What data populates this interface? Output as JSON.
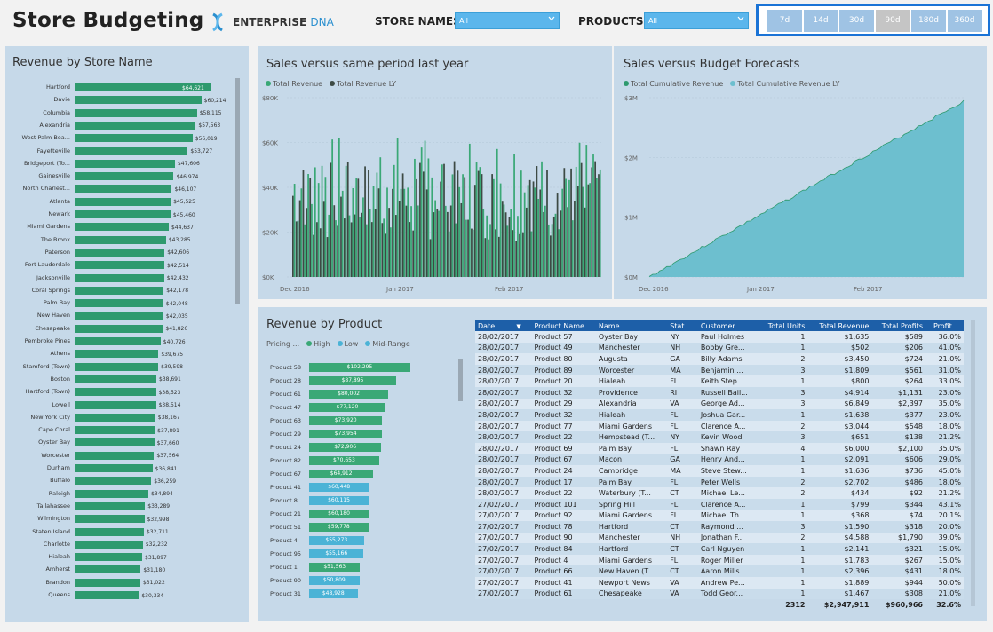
{
  "header": {
    "title": "Store Budgeting",
    "logo_main": "ENTERPRISE",
    "logo_accent": "DNA",
    "store_filter_label": "STORE NAMES",
    "store_filter_value": "All",
    "product_filter_label": "PRODUCTS",
    "product_filter_value": "All"
  },
  "periods": [
    {
      "label": "7d",
      "selected": false
    },
    {
      "label": "14d",
      "selected": false
    },
    {
      "label": "30d",
      "selected": false
    },
    {
      "label": "90d",
      "selected": true
    },
    {
      "label": "180d",
      "selected": false
    },
    {
      "label": "360d",
      "selected": false
    }
  ],
  "revenue_by_store": {
    "title": "Revenue by Store Name",
    "max": 64621,
    "items": [
      {
        "name": "Hartford",
        "value": 64621,
        "label": "$64,621"
      },
      {
        "name": "Davie",
        "value": 60214,
        "label": "$60,214"
      },
      {
        "name": "Columbia",
        "value": 58115,
        "label": "$58,115"
      },
      {
        "name": "Alexandria",
        "value": 57563,
        "label": "$57,563"
      },
      {
        "name": "West Palm Bea...",
        "value": 56019,
        "label": "$56,019"
      },
      {
        "name": "Fayetteville",
        "value": 53727,
        "label": "$53,727"
      },
      {
        "name": "Bridgeport (To...",
        "value": 47606,
        "label": "$47,606"
      },
      {
        "name": "Gainesville",
        "value": 46974,
        "label": "$46,974"
      },
      {
        "name": "North Charlest...",
        "value": 46107,
        "label": "$46,107"
      },
      {
        "name": "Atlanta",
        "value": 45525,
        "label": "$45,525"
      },
      {
        "name": "Newark",
        "value": 45460,
        "label": "$45,460"
      },
      {
        "name": "Miami Gardens",
        "value": 44637,
        "label": "$44,637"
      },
      {
        "name": "The Bronx",
        "value": 43285,
        "label": "$43,285"
      },
      {
        "name": "Paterson",
        "value": 42606,
        "label": "$42,606"
      },
      {
        "name": "Fort Lauderdale",
        "value": 42514,
        "label": "$42,514"
      },
      {
        "name": "Jacksonville",
        "value": 42432,
        "label": "$42,432"
      },
      {
        "name": "Coral Springs",
        "value": 42178,
        "label": "$42,178"
      },
      {
        "name": "Palm Bay",
        "value": 42048,
        "label": "$42,048"
      },
      {
        "name": "New Haven",
        "value": 42035,
        "label": "$42,035"
      },
      {
        "name": "Chesapeake",
        "value": 41826,
        "label": "$41,826"
      },
      {
        "name": "Pembroke Pines",
        "value": 40726,
        "label": "$40,726"
      },
      {
        "name": "Athens",
        "value": 39675,
        "label": "$39,675"
      },
      {
        "name": "Stamford (Town)",
        "value": 39598,
        "label": "$39,598"
      },
      {
        "name": "Boston",
        "value": 38691,
        "label": "$38,691"
      },
      {
        "name": "Hartford (Town)",
        "value": 38523,
        "label": "$38,523"
      },
      {
        "name": "Lowell",
        "value": 38514,
        "label": "$38,514"
      },
      {
        "name": "New York City",
        "value": 38167,
        "label": "$38,167"
      },
      {
        "name": "Cape Coral",
        "value": 37891,
        "label": "$37,891"
      },
      {
        "name": "Oyster Bay",
        "value": 37660,
        "label": "$37,660"
      },
      {
        "name": "Worcester",
        "value": 37564,
        "label": "$37,564"
      },
      {
        "name": "Durham",
        "value": 36841,
        "label": "$36,841"
      },
      {
        "name": "Buffalo",
        "value": 36259,
        "label": "$36,259"
      },
      {
        "name": "Raleigh",
        "value": 34894,
        "label": "$34,894"
      },
      {
        "name": "Tallahassee",
        "value": 33289,
        "label": "$33,289"
      },
      {
        "name": "Wilmington",
        "value": 32998,
        "label": "$32,998"
      },
      {
        "name": "Staten Island",
        "value": 32711,
        "label": "$32,711"
      },
      {
        "name": "Charlotte",
        "value": 32232,
        "label": "$32,232"
      },
      {
        "name": "Hialeah",
        "value": 31897,
        "label": "$31,897"
      },
      {
        "name": "Amherst",
        "value": 31180,
        "label": "$31,180"
      },
      {
        "name": "Brandon",
        "value": 31022,
        "label": "$31,022"
      },
      {
        "name": "Queens",
        "value": 30334,
        "label": "$30,334"
      }
    ]
  },
  "sales_vs_ly": {
    "title": "Sales versus same period last year",
    "legend": [
      {
        "label": "Total Revenue",
        "color": "#3aa876"
      },
      {
        "label": "Total Revenue LY",
        "color": "#3d4a44"
      }
    ],
    "y_ticks": [
      "$0K",
      "$20K",
      "$40K",
      "$60K",
      "$80K"
    ],
    "x_ticks": [
      "Dec 2016",
      "Jan 2017",
      "Feb 2017"
    ]
  },
  "sales_vs_budget": {
    "title": "Sales versus Budget Forecasts",
    "legend": [
      {
        "label": "Total Cumulative Revenue",
        "color": "#2e9a6e"
      },
      {
        "label": "Total Cumulative Revenue LY",
        "color": "#6dbfcf"
      }
    ],
    "y_ticks": [
      "$0M",
      "$1M",
      "$2M",
      "$3M"
    ],
    "x_ticks": [
      "Dec 2016",
      "Jan 2017",
      "Feb 2017"
    ]
  },
  "revenue_by_product": {
    "title": "Revenue by Product",
    "legend_title": "Pricing ...",
    "legend": [
      {
        "label": "High",
        "color": "#3aa876"
      },
      {
        "label": "Low",
        "color": "#4bb3d6"
      },
      {
        "label": "Mid-Range",
        "color": "#4bb3d6"
      }
    ],
    "max": 102295,
    "items": [
      {
        "name": "Product 58",
        "value": 102295,
        "label": "$102,295",
        "tier": "high"
      },
      {
        "name": "Product 28",
        "value": 87895,
        "label": "$87,895",
        "tier": "high"
      },
      {
        "name": "Product 61",
        "value": 80002,
        "label": "$80,002",
        "tier": "high"
      },
      {
        "name": "Product 47",
        "value": 77120,
        "label": "$77,120",
        "tier": "high"
      },
      {
        "name": "Product 63",
        "value": 73920,
        "label": "$73,920",
        "tier": "high"
      },
      {
        "name": "Product 29",
        "value": 73954,
        "label": "$73,954",
        "tier": "high"
      },
      {
        "name": "Product 24",
        "value": 72906,
        "label": "$72,906",
        "tier": "high"
      },
      {
        "name": "Product 82",
        "value": 70653,
        "label": "$70,653",
        "tier": "high"
      },
      {
        "name": "Product 67",
        "value": 64912,
        "label": "$64,912",
        "tier": "high"
      },
      {
        "name": "Product 41",
        "value": 60448,
        "label": "$60,448",
        "tier": "low"
      },
      {
        "name": "Product 8",
        "value": 60115,
        "label": "$60,115",
        "tier": "low"
      },
      {
        "name": "Product 21",
        "value": 60180,
        "label": "$60,180",
        "tier": "high"
      },
      {
        "name": "Product 51",
        "value": 59778,
        "label": "$59,778",
        "tier": "high"
      },
      {
        "name": "Product 4",
        "value": 55273,
        "label": "$55,273",
        "tier": "low"
      },
      {
        "name": "Product 95",
        "value": 55166,
        "label": "$55,166",
        "tier": "low"
      },
      {
        "name": "Product 1",
        "value": 51563,
        "label": "$51,563",
        "tier": "high"
      },
      {
        "name": "Product 90",
        "value": 50809,
        "label": "$50,809",
        "tier": "low"
      },
      {
        "name": "Product 31",
        "value": 48928,
        "label": "$48,928",
        "tier": "low"
      }
    ]
  },
  "table": {
    "columns": [
      "Date",
      "Product Name",
      "Name",
      "Stat...",
      "Customer ...",
      "Total Units",
      "Total Revenue",
      "Total Profits",
      "Profit ..."
    ],
    "rows": [
      [
        "28/02/2017",
        "Product 57",
        "Oyster Bay",
        "NY",
        "Paul Holmes",
        "1",
        "$1,635",
        "$589",
        "36.0%"
      ],
      [
        "28/02/2017",
        "Product 49",
        "Manchester",
        "NH",
        "Bobby Gre...",
        "1",
        "$502",
        "$206",
        "41.0%"
      ],
      [
        "28/02/2017",
        "Product 80",
        "Augusta",
        "GA",
        "Billy Adams",
        "2",
        "$3,450",
        "$724",
        "21.0%"
      ],
      [
        "28/02/2017",
        "Product 89",
        "Worcester",
        "MA",
        "Benjamin ...",
        "3",
        "$1,809",
        "$561",
        "31.0%"
      ],
      [
        "28/02/2017",
        "Product 20",
        "Hialeah",
        "FL",
        "Keith Step...",
        "1",
        "$800",
        "$264",
        "33.0%"
      ],
      [
        "28/02/2017",
        "Product 32",
        "Providence",
        "RI",
        "Russell Bail...",
        "3",
        "$4,914",
        "$1,131",
        "23.0%"
      ],
      [
        "28/02/2017",
        "Product 29",
        "Alexandria",
        "VA",
        "George Ad...",
        "3",
        "$6,849",
        "$2,397",
        "35.0%"
      ],
      [
        "28/02/2017",
        "Product 32",
        "Hialeah",
        "FL",
        "Joshua Gar...",
        "1",
        "$1,638",
        "$377",
        "23.0%"
      ],
      [
        "28/02/2017",
        "Product 77",
        "Miami Gardens",
        "FL",
        "Clarence A...",
        "2",
        "$3,044",
        "$548",
        "18.0%"
      ],
      [
        "28/02/2017",
        "Product 22",
        "Hempstead (T...",
        "NY",
        "Kevin Wood",
        "3",
        "$651",
        "$138",
        "21.2%"
      ],
      [
        "28/02/2017",
        "Product 69",
        "Palm Bay",
        "FL",
        "Shawn Ray",
        "4",
        "$6,000",
        "$2,100",
        "35.0%"
      ],
      [
        "28/02/2017",
        "Product 67",
        "Macon",
        "GA",
        "Henry And...",
        "1",
        "$2,091",
        "$606",
        "29.0%"
      ],
      [
        "28/02/2017",
        "Product 24",
        "Cambridge",
        "MA",
        "Steve Stew...",
        "1",
        "$1,636",
        "$736",
        "45.0%"
      ],
      [
        "28/02/2017",
        "Product 17",
        "Palm Bay",
        "FL",
        "Peter Wells",
        "2",
        "$2,702",
        "$486",
        "18.0%"
      ],
      [
        "28/02/2017",
        "Product 22",
        "Waterbury (T...",
        "CT",
        "Michael Le...",
        "2",
        "$434",
        "$92",
        "21.2%"
      ],
      [
        "27/02/2017",
        "Product 101",
        "Spring Hill",
        "FL",
        "Clarence A...",
        "1",
        "$799",
        "$344",
        "43.1%"
      ],
      [
        "27/02/2017",
        "Product 92",
        "Miami Gardens",
        "FL",
        "Michael Th...",
        "1",
        "$368",
        "$74",
        "20.1%"
      ],
      [
        "27/02/2017",
        "Product 78",
        "Hartford",
        "CT",
        "Raymond ...",
        "3",
        "$1,590",
        "$318",
        "20.0%"
      ],
      [
        "27/02/2017",
        "Product 90",
        "Manchester",
        "NH",
        "Jonathan F...",
        "2",
        "$4,588",
        "$1,790",
        "39.0%"
      ],
      [
        "27/02/2017",
        "Product 84",
        "Hartford",
        "CT",
        "Carl Nguyen",
        "1",
        "$2,141",
        "$321",
        "15.0%"
      ],
      [
        "27/02/2017",
        "Product 4",
        "Miami Gardens",
        "FL",
        "Roger Miller",
        "1",
        "$1,783",
        "$267",
        "15.0%"
      ],
      [
        "27/02/2017",
        "Product 66",
        "New Haven (T...",
        "CT",
        "Aaron Mills",
        "1",
        "$2,396",
        "$431",
        "18.0%"
      ],
      [
        "27/02/2017",
        "Product 41",
        "Newport News",
        "VA",
        "Andrew Pe...",
        "1",
        "$1,889",
        "$944",
        "50.0%"
      ],
      [
        "27/02/2017",
        "Product 61",
        "Chesapeake",
        "VA",
        "Todd Geor...",
        "1",
        "$1,467",
        "$308",
        "21.0%"
      ]
    ],
    "totals": [
      "",
      "",
      "",
      "",
      "",
      "2312",
      "$2,947,911",
      "$960,966",
      "32.6%"
    ]
  }
}
